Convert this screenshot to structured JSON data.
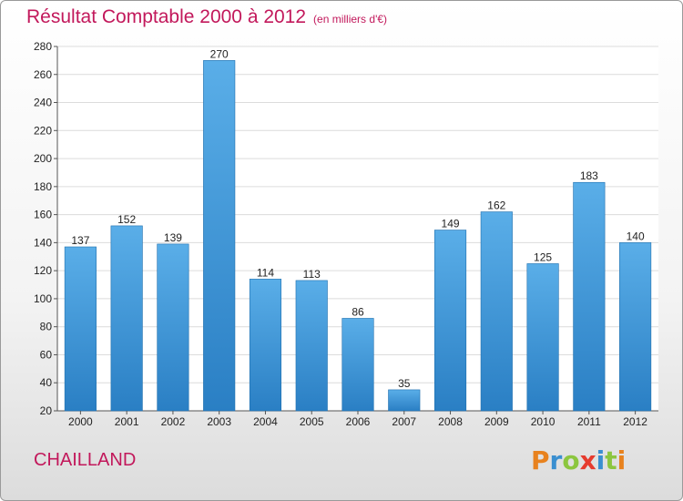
{
  "header": {
    "title": "Résultat Comptable 2000 à 2012",
    "unit": "(en milliers d'€)"
  },
  "commune": "CHAILLAND",
  "logo": {
    "text": "Proxiti",
    "letters": [
      {
        "ch": "P",
        "color": "#e8821e"
      },
      {
        "ch": "r",
        "color": "#3a8fd0"
      },
      {
        "ch": "o",
        "color": "#8cc63f"
      },
      {
        "ch": "x",
        "color": "#e63b2e"
      },
      {
        "ch": "i",
        "color": "#3a8fd0"
      },
      {
        "ch": "t",
        "color": "#8cc63f"
      },
      {
        "ch": "i",
        "color": "#e8821e"
      }
    ]
  },
  "colors": {
    "bar_top": "#5aaee8",
    "bar_bottom": "#2a7fc4",
    "title": "#c2185b"
  },
  "chart_data": {
    "type": "bar",
    "categories": [
      "2000",
      "2001",
      "2002",
      "2003",
      "2004",
      "2005",
      "2006",
      "2007",
      "2008",
      "2009",
      "2010",
      "2011",
      "2012"
    ],
    "values": [
      137,
      152,
      139,
      270,
      114,
      113,
      86,
      35,
      149,
      162,
      125,
      183,
      140
    ],
    "title": "Résultat Comptable 2000 à 2012",
    "xlabel": "",
    "ylabel": "",
    "ylim": [
      20,
      280
    ],
    "yticks": [
      20,
      40,
      60,
      80,
      100,
      120,
      140,
      160,
      180,
      200,
      220,
      240,
      260,
      280
    ],
    "grid": true,
    "legend": "none"
  }
}
